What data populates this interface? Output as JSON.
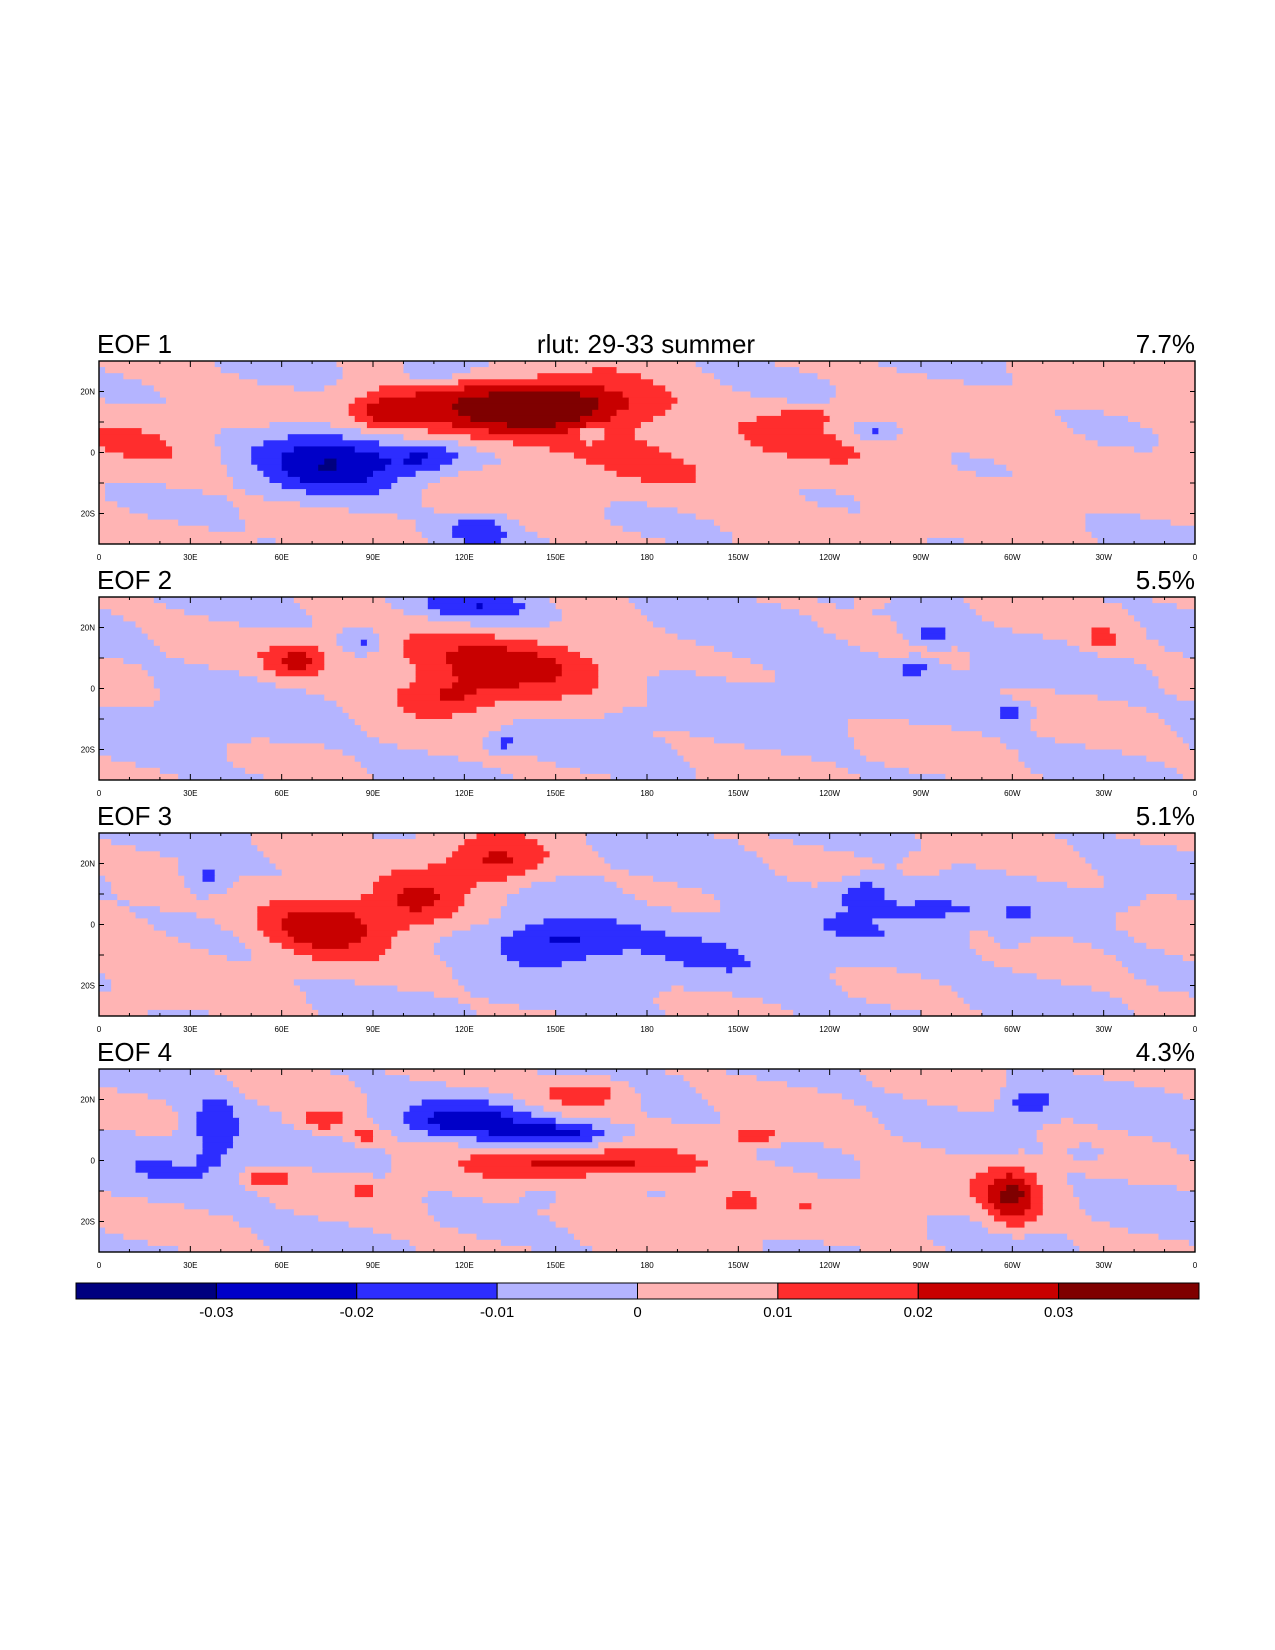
{
  "chart_data": {
    "type": "heatmap",
    "title": "rlut: 29-33 summer",
    "variable": "rlut",
    "lon_range": [
      0,
      360
    ],
    "lat_range": [
      -30,
      30
    ],
    "panels": [
      {
        "label": "EOF 1",
        "variance": "7.7%",
        "blobs": [
          {
            "lon": 128,
            "lat": 12,
            "rlon": 45,
            "rlat": 10,
            "v": 0.032
          },
          {
            "lon": 155,
            "lat": 17,
            "rlon": 25,
            "rlat": 7,
            "v": 0.022
          },
          {
            "lon": 95,
            "lat": 13,
            "rlon": 12,
            "rlat": 6,
            "v": 0.018
          },
          {
            "lon": 78,
            "lat": -3,
            "rlon": 25,
            "rlat": 12,
            "v": -0.025
          },
          {
            "lon": 108,
            "lat": -2,
            "rlon": 12,
            "rlat": 5,
            "v": -0.016
          },
          {
            "lon": 125,
            "lat": -25,
            "rlon": 10,
            "rlat": 5,
            "v": -0.018
          },
          {
            "lon": 110,
            "lat": 26,
            "rlon": 12,
            "rlat": 4,
            "v": -0.015
          },
          {
            "lon": 161,
            "lat": 6,
            "rlon": 6,
            "rlat": 3,
            "v": -0.014
          },
          {
            "lon": 255,
            "lat": 7,
            "rlon": 8,
            "rlat": 3,
            "v": -0.015
          },
          {
            "lon": 233,
            "lat": 12,
            "rlon": 10,
            "rlat": 3,
            "v": 0.012
          },
          {
            "lon": 100,
            "lat": 5,
            "rlon": 60,
            "rlat": 14,
            "v": -0.008
          },
          {
            "lon": 210,
            "lat": -2,
            "rlon": 110,
            "rlat": 18,
            "v": 0.007
          },
          {
            "lon": 15,
            "lat": 5,
            "rlon": 30,
            "rlat": 18,
            "v": 0.006
          }
        ],
        "bias": 0.001
      },
      {
        "label": "EOF 2",
        "variance": "5.5%",
        "blobs": [
          {
            "lon": 135,
            "lat": 8,
            "rlon": 40,
            "rlat": 10,
            "v": 0.03
          },
          {
            "lon": 115,
            "lat": -3,
            "rlon": 18,
            "rlat": 6,
            "v": 0.018
          },
          {
            "lon": 65,
            "lat": 9,
            "rlon": 10,
            "rlat": 6,
            "v": 0.02
          },
          {
            "lon": 330,
            "lat": 16,
            "rlon": 6,
            "rlat": 4,
            "v": 0.014
          },
          {
            "lon": 255,
            "lat": 30,
            "rlon": 6,
            "rlat": 3,
            "v": 0.014
          },
          {
            "lon": 125,
            "lat": 27,
            "rlon": 22,
            "rlat": 5,
            "v": -0.02
          },
          {
            "lon": 87,
            "lat": 16,
            "rlon": 6,
            "rlat": 4,
            "v": -0.015
          },
          {
            "lon": 273,
            "lat": 18,
            "rlon": 8,
            "rlat": 4,
            "v": -0.015
          },
          {
            "lon": 268,
            "lat": 7,
            "rlon": 6,
            "rlat": 3,
            "v": -0.014
          },
          {
            "lon": 300,
            "lat": -8,
            "rlon": 7,
            "rlat": 3,
            "v": -0.014
          },
          {
            "lon": 133,
            "lat": -18,
            "rlon": 6,
            "rlat": 3,
            "v": -0.014
          },
          {
            "lon": 175,
            "lat": -10,
            "rlon": 8,
            "rlat": 3,
            "v": -0.013
          },
          {
            "lon": 200,
            "lat": 5,
            "rlon": 90,
            "rlat": 16,
            "v": -0.006
          },
          {
            "lon": 40,
            "lat": -12,
            "rlon": 30,
            "rlat": 14,
            "v": -0.006
          }
        ],
        "bias": 0.0005
      },
      {
        "label": "EOF 3",
        "variance": "5.1%",
        "blobs": [
          {
            "lon": 75,
            "lat": 0,
            "rlon": 22,
            "rlat": 10,
            "v": 0.03
          },
          {
            "lon": 105,
            "lat": 8,
            "rlon": 15,
            "rlat": 9,
            "v": 0.022
          },
          {
            "lon": 130,
            "lat": 20,
            "rlon": 18,
            "rlat": 8,
            "v": 0.025
          },
          {
            "lon": 150,
            "lat": -5,
            "rlon": 20,
            "rlat": 7,
            "v": -0.022
          },
          {
            "lon": 35,
            "lat": 15,
            "rlon": 8,
            "rlat": 6,
            "v": -0.016
          },
          {
            "lon": 252,
            "lat": 11,
            "rlon": 10,
            "rlat": 5,
            "v": -0.017
          },
          {
            "lon": 272,
            "lat": 5,
            "rlon": 15,
            "rlat": 3,
            "v": -0.015
          },
          {
            "lon": 300,
            "lat": -4,
            "rlon": 5,
            "rlat": 3,
            "v": -0.013
          },
          {
            "lon": 333,
            "lat": 8,
            "rlon": 8,
            "rlat": 3,
            "v": -0.012
          },
          {
            "lon": 302,
            "lat": 4,
            "rlon": 4,
            "rlat": 2,
            "v": -0.013
          },
          {
            "lon": 272,
            "lat": 20,
            "rlon": 6,
            "rlat": 3,
            "v": 0.012
          },
          {
            "lon": 205,
            "lat": -5,
            "rlon": 80,
            "rlat": 18,
            "v": -0.007
          },
          {
            "lon": 15,
            "lat": -10,
            "rlon": 25,
            "rlat": 14,
            "v": 0.006
          }
        ],
        "bias": 0.0
      },
      {
        "label": "EOF 4",
        "variance": "4.3%",
        "blobs": [
          {
            "lon": 120,
            "lat": 13,
            "rlon": 22,
            "rlat": 6,
            "v": -0.022
          },
          {
            "lon": 153,
            "lat": 9,
            "rlon": 20,
            "rlat": 4,
            "v": -0.024
          },
          {
            "lon": 160,
            "lat": -1,
            "rlon": 30,
            "rlat": 4,
            "v": 0.022
          },
          {
            "lon": 160,
            "lat": 22,
            "rlon": 15,
            "rlat": 5,
            "v": 0.02
          },
          {
            "lon": 73,
            "lat": 13,
            "rlon": 10,
            "rlat": 4,
            "v": 0.018
          },
          {
            "lon": 88,
            "lat": 8,
            "rlon": 6,
            "rlat": 3,
            "v": 0.016
          },
          {
            "lon": 55,
            "lat": -6,
            "rlon": 8,
            "rlat": 3,
            "v": 0.018
          },
          {
            "lon": 87,
            "lat": -10,
            "rlon": 4,
            "rlat": 2,
            "v": 0.014
          },
          {
            "lon": 215,
            "lat": 8,
            "rlon": 10,
            "rlat": 3,
            "v": 0.016
          },
          {
            "lon": 300,
            "lat": -12,
            "rlon": 9,
            "rlat": 10,
            "v": 0.027
          },
          {
            "lon": 305,
            "lat": 19,
            "rlon": 8,
            "rlat": 5,
            "v": -0.018
          },
          {
            "lon": 38,
            "lat": 12,
            "rlon": 7,
            "rlat": 12,
            "v": -0.015
          },
          {
            "lon": 210,
            "lat": -14,
            "rlon": 5,
            "rlat": 3,
            "v": 0.013
          },
          {
            "lon": 325,
            "lat": 3,
            "rlon": 5,
            "rlat": 2,
            "v": -0.013
          },
          {
            "lon": 145,
            "lat": -12,
            "rlon": 6,
            "rlat": 3,
            "v": -0.012
          },
          {
            "lon": 200,
            "lat": -10,
            "rlon": 90,
            "rlat": 14,
            "v": 0.006
          },
          {
            "lon": 30,
            "lat": 0,
            "rlon": 35,
            "rlat": 15,
            "v": -0.006
          }
        ],
        "bias": 0.0
      }
    ],
    "x_ticks": [
      "0",
      "30E",
      "60E",
      "90E",
      "120E",
      "150E",
      "180",
      "150W",
      "120W",
      "90W",
      "60W",
      "30W",
      "0"
    ],
    "y_ticks": [
      "20N",
      "0",
      "20S"
    ],
    "colorbar": {
      "levels": [
        -0.03,
        -0.02,
        -0.01,
        0,
        0.01,
        0.02,
        0.03
      ],
      "labels": [
        "-0.03",
        "-0.02",
        "-0.01",
        "0",
        "0.01",
        "0.02",
        "0.03"
      ],
      "colors": [
        "#00007f",
        "#0000c8",
        "#2d2dff",
        "#b4b4ff",
        "#ffb4b4",
        "#ff2d2d",
        "#c80000",
        "#7f0000"
      ]
    }
  }
}
